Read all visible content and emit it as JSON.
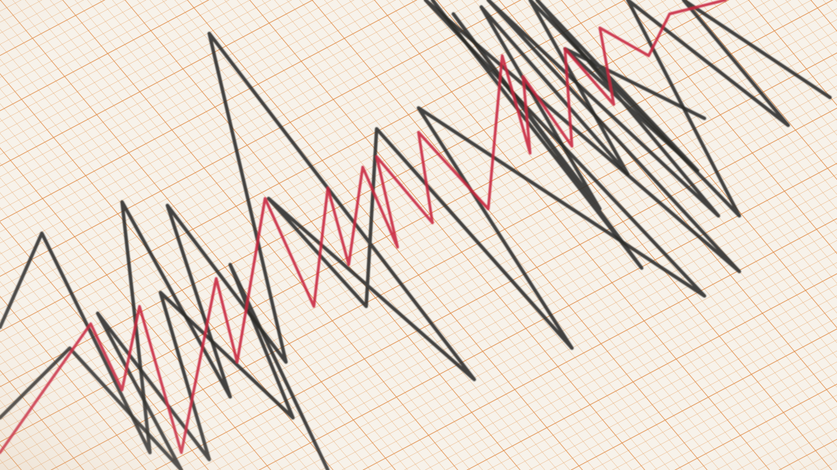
{
  "photo": {
    "subject": "seismograph-trace",
    "colors": {
      "paper": "#f7f2ea",
      "grid_minor": "#eab07a",
      "grid_major": "#e08a45",
      "trace_primary": "#2a2a28",
      "trace_secondary": "#c8243f"
    },
    "traces": [
      {
        "name": "black-trace",
        "color_key": "trace_primary"
      },
      {
        "name": "red-trace",
        "color_key": "trace_secondary"
      }
    ]
  }
}
